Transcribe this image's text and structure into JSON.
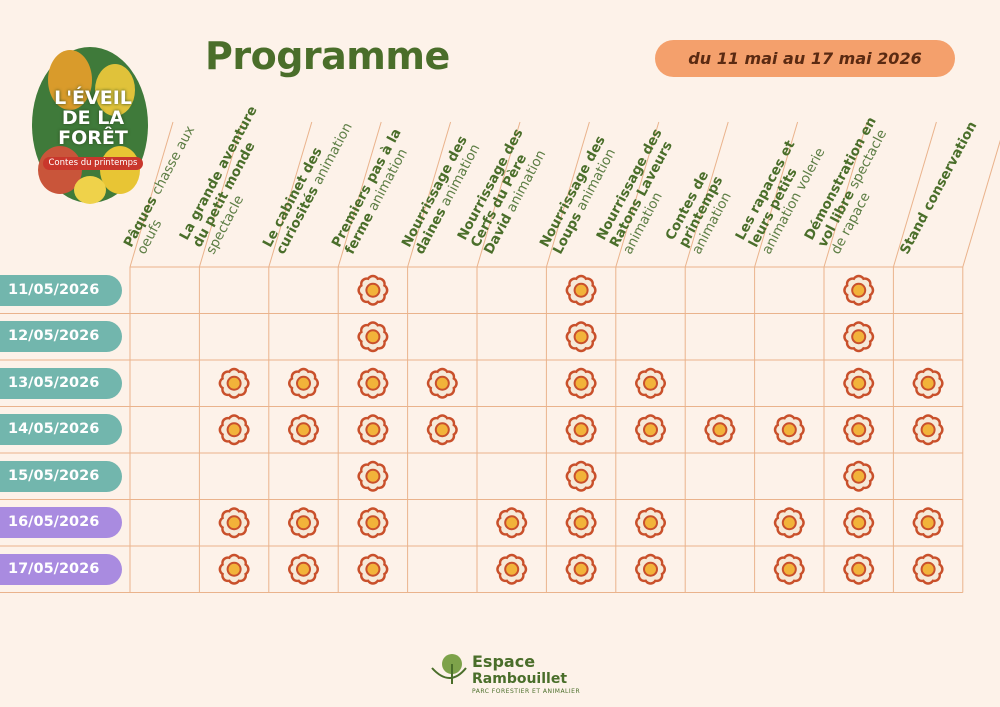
{
  "logo": {
    "title": "L'ÉVEIL DE LA FORÊT",
    "subtitle": "Contes du printemps"
  },
  "header": {
    "title": "Programme",
    "date_range": "du 11 mai au 17 mai 2026"
  },
  "table": {
    "columns": [
      {
        "name": "Pâques",
        "type": "chasse aux oeufs"
      },
      {
        "name": "La grande aventure du petit monde",
        "type": "spectacle"
      },
      {
        "name": "Le cabinet des curiosités",
        "type": "animation"
      },
      {
        "name": "Premiers pas à la ferme",
        "type": "animation"
      },
      {
        "name": "Nourrissage des daines",
        "type": "animation"
      },
      {
        "name": "Nourrissage des Cerfs du Père David",
        "type": "animation"
      },
      {
        "name": "Nourrissage des Loups",
        "type": "animation"
      },
      {
        "name": "Nourrissage des Ratons Laveurs",
        "type": "animation"
      },
      {
        "name": "Contes de printemps",
        "type": "animation"
      },
      {
        "name": "Les rapaces et leurs petits",
        "type": "animation volerie"
      },
      {
        "name": "Démonstration en vol libre",
        "type": "spectacle de rapace"
      },
      {
        "name": "Stand conservation"
      }
    ],
    "rows": [
      {
        "date": "11/05/2026",
        "color": "#72b6ad",
        "cells": [
          false,
          false,
          false,
          true,
          false,
          false,
          true,
          false,
          false,
          false,
          true,
          false
        ]
      },
      {
        "date": "12/05/2026",
        "color": "#72b6ad",
        "cells": [
          false,
          false,
          false,
          true,
          false,
          false,
          true,
          false,
          false,
          false,
          true,
          false
        ]
      },
      {
        "date": "13/05/2026",
        "color": "#72b6ad",
        "cells": [
          false,
          true,
          true,
          true,
          true,
          false,
          true,
          true,
          false,
          false,
          true,
          true
        ]
      },
      {
        "date": "14/05/2026",
        "color": "#72b6ad",
        "cells": [
          false,
          true,
          true,
          true,
          true,
          false,
          true,
          true,
          true,
          true,
          true,
          true
        ]
      },
      {
        "date": "15/05/2026",
        "color": "#72b6ad",
        "cells": [
          false,
          false,
          false,
          true,
          false,
          false,
          true,
          false,
          false,
          false,
          true,
          false
        ]
      },
      {
        "date": "16/05/2026",
        "color": "#a98be0",
        "cells": [
          false,
          true,
          true,
          true,
          false,
          true,
          true,
          true,
          false,
          true,
          true,
          true
        ]
      },
      {
        "date": "17/05/2026",
        "color": "#a98be0",
        "cells": [
          false,
          true,
          true,
          true,
          false,
          true,
          true,
          true,
          false,
          true,
          true,
          true
        ]
      }
    ]
  },
  "footer": {
    "brand_1": "Espace",
    "brand_2": "Rambouillet",
    "tagline": "PARC FORESTIER ET ANIMALIER"
  }
}
